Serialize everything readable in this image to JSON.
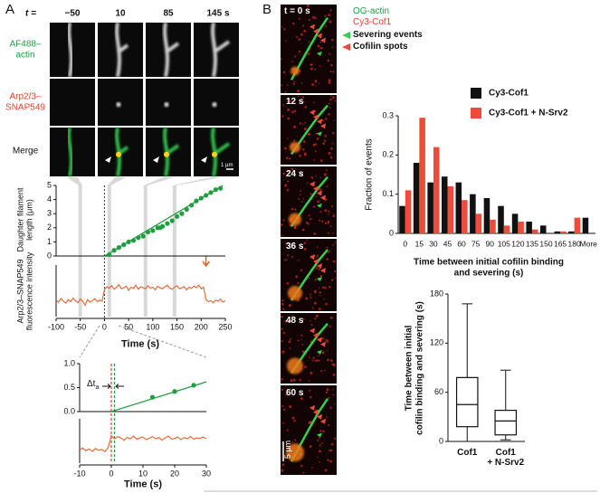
{
  "panel_labels": [
    "A",
    "B"
  ],
  "panel_a": {
    "time_prefix": "t =",
    "times": [
      "−50",
      "10",
      "85",
      "145 s"
    ],
    "rows": [
      "AF488–\nactin",
      "Arp2/3–\nSNAP549",
      "Merge"
    ],
    "scale_bar": "1 µm"
  },
  "panel_b": {
    "times": [
      "t = 0 s",
      "12 s",
      "24 s",
      "36 s",
      "48 s",
      "60 s"
    ],
    "channels": [
      "OG-actin",
      "Cy3-Cof1"
    ],
    "markers": [
      "Severing events",
      "Cofilin spots"
    ],
    "scale_bar": "5 µm"
  },
  "chart_data": [
    {
      "type": "scatter",
      "y_label": "Daughter filament\nlength (μm)",
      "xlim": [
        -100,
        250
      ],
      "ylim": [
        0,
        5
      ],
      "yticks": [
        0,
        1,
        2,
        3,
        4,
        5
      ],
      "series": [
        {
          "color": "#1f9e3e",
          "x": [
            10,
            20,
            30,
            40,
            50,
            60,
            70,
            80,
            90,
            100,
            110,
            115,
            120,
            130,
            140,
            150,
            160,
            170,
            180,
            190,
            200,
            210,
            220,
            230,
            240
          ],
          "values": [
            0.1,
            0.4,
            0.6,
            0.8,
            1.0,
            1.1,
            1.3,
            1.4,
            1.7,
            1.8,
            2.0,
            2.0,
            2.1,
            2.3,
            2.5,
            2.8,
            3.0,
            3.3,
            3.6,
            3.9,
            4.1,
            4.3,
            4.5,
            4.7,
            4.8
          ]
        },
        {
          "color": "#1f9e3e",
          "fit": true,
          "x": [
            0,
            245
          ],
          "values": [
            0,
            5
          ]
        }
      ]
    },
    {
      "type": "line",
      "y_label": "Arp2/3–SNAP549\nfluorescence intensity",
      "x_label": "Time (s)",
      "xlim": [
        -100,
        250
      ],
      "xticks": [
        -100,
        -50,
        0,
        50,
        100,
        150,
        200,
        250
      ],
      "ylim": [
        0,
        1
      ],
      "color": "#e8602c",
      "x": [
        -100,
        -95,
        -90,
        -85,
        -80,
        -75,
        -70,
        -65,
        -60,
        -55,
        -50,
        -45,
        -40,
        -35,
        -30,
        -25,
        -20,
        -15,
        -10,
        -5,
        0,
        5,
        10,
        15,
        20,
        25,
        30,
        35,
        40,
        45,
        50,
        55,
        60,
        65,
        70,
        75,
        80,
        85,
        90,
        95,
        100,
        105,
        110,
        115,
        120,
        125,
        130,
        135,
        140,
        145,
        150,
        155,
        160,
        165,
        170,
        175,
        180,
        185,
        190,
        195,
        200,
        205,
        210,
        215,
        220,
        225,
        230,
        235,
        240,
        245,
        250
      ],
      "values": [
        0.32,
        0.28,
        0.35,
        0.3,
        0.26,
        0.33,
        0.29,
        0.36,
        0.31,
        0.27,
        0.34,
        0.3,
        0.22,
        0.33,
        0.28,
        0.31,
        0.35,
        0.29,
        0.32,
        0.3,
        0.52,
        0.58,
        0.55,
        0.6,
        0.53,
        0.57,
        0.62,
        0.54,
        0.56,
        0.59,
        0.51,
        0.57,
        0.55,
        0.61,
        0.53,
        0.58,
        0.56,
        0.54,
        0.6,
        0.55,
        0.57,
        0.52,
        0.59,
        0.56,
        0.54,
        0.58,
        0.61,
        0.55,
        0.53,
        0.57,
        0.6,
        0.54,
        0.56,
        0.58,
        0.52,
        0.57,
        0.55,
        0.59,
        0.56,
        0.61,
        0.54,
        0.57,
        0.33,
        0.29,
        0.31,
        0.27,
        0.32,
        0.3,
        0.34,
        0.28,
        0.31
      ]
    },
    {
      "type": "scatter",
      "annotation": "Δt",
      "annotation_subscript": "a",
      "xlim": [
        -10,
        30
      ],
      "ylim": [
        0,
        1
      ],
      "yticks": [
        {
          "value": 0,
          "label": "0.0"
        },
        0.5,
        {
          "value": 1,
          "label": "1.0"
        }
      ],
      "series": [
        {
          "color": "#1f9e3e",
          "x": [
            13,
            20,
            26
          ],
          "values": [
            0.3,
            0.42,
            0.55
          ]
        },
        {
          "color": "#1f9e3e",
          "fit": true,
          "x": [
            0,
            30
          ],
          "values": [
            0,
            0.62
          ]
        }
      ]
    },
    {
      "type": "line",
      "x_label": "Time (s)",
      "xlim": [
        -10,
        30
      ],
      "xticks": [
        -10,
        0,
        10,
        20,
        30
      ],
      "ylim": [
        0,
        1
      ],
      "color": "#e8602c",
      "x": [
        -10,
        -9,
        -8,
        -7,
        -6,
        -5,
        -4,
        -3,
        -2,
        -1,
        0,
        1,
        2,
        3,
        4,
        5,
        6,
        7,
        8,
        9,
        10,
        11,
        12,
        13,
        14,
        15,
        16,
        17,
        18,
        19,
        20,
        21,
        22,
        23,
        24,
        25,
        26,
        27,
        28,
        29,
        30
      ],
      "values": [
        0.3,
        0.34,
        0.28,
        0.32,
        0.27,
        0.33,
        0.29,
        0.31,
        0.26,
        0.35,
        0.62,
        0.55,
        0.6,
        0.57,
        0.52,
        0.58,
        0.55,
        0.61,
        0.54,
        0.57,
        0.59,
        0.53,
        0.56,
        0.6,
        0.55,
        0.58,
        0.52,
        0.57,
        0.61,
        0.54,
        0.56,
        0.59,
        0.53,
        0.58,
        0.55,
        0.6,
        0.54,
        0.57,
        0.56,
        0.59,
        0.55
      ]
    },
    {
      "type": "bar",
      "y_label": "Fraction of events",
      "x_label": "Time between initial cofilin binding\nand severing (s)",
      "categories": [
        "0",
        "15",
        "30",
        "45",
        "60",
        "75",
        "90",
        "105",
        "120",
        "135",
        "150",
        "165",
        "180",
        "More"
      ],
      "ylim": [
        0,
        0.3
      ],
      "yticks": [
        0,
        0.1,
        0.2,
        0.3
      ],
      "legend": "top-right",
      "series": [
        {
          "name": "Cy3-Cof1",
          "color": "#111111",
          "values": [
            0.07,
            0.18,
            0.13,
            0.145,
            0.13,
            0.1,
            0.09,
            0.07,
            0.05,
            0.03,
            0.02,
            0.005,
            0.005,
            0.04
          ]
        },
        {
          "name": "Cy3-Cof1 + N-Srv2",
          "color": "#ef4a3a",
          "values": [
            0.11,
            0.295,
            0.22,
            0.12,
            0.085,
            0.05,
            0.035,
            0.02,
            0.03,
            0.01,
            0,
            0.005,
            0.04,
            0
          ]
        }
      ]
    },
    {
      "type": "box",
      "y_label": "Time between initial\ncofilin binding and severing (s)",
      "categories": [
        "Cof1",
        "Cof1\n+ N-Srv2"
      ],
      "ylim": [
        0,
        180
      ],
      "yticks": [
        0,
        60,
        120,
        180
      ],
      "boxes": [
        {
          "min": 0,
          "q1": 18,
          "median": 45,
          "q3": 78,
          "max": 168
        },
        {
          "min": 2,
          "q1": 8,
          "median": 25,
          "q3": 38,
          "max": 87
        }
      ]
    }
  ]
}
